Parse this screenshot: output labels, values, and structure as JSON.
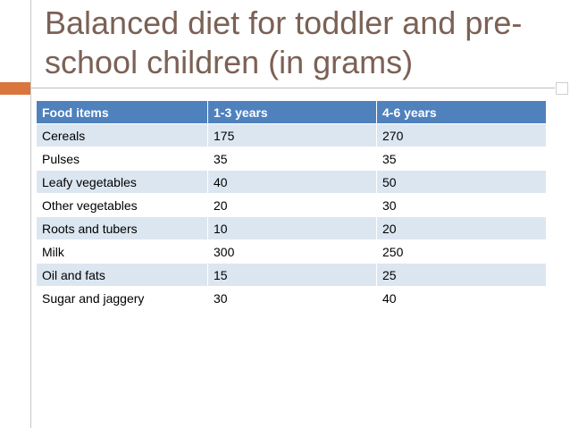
{
  "slide": {
    "title": "Balanced diet for toddler and pre-school children (in grams)"
  },
  "table": {
    "headers": [
      "Food items",
      "1-3 years",
      "4-6 years"
    ],
    "rows": [
      [
        "Cereals",
        "175",
        "270"
      ],
      [
        "Pulses",
        "35",
        "35"
      ],
      [
        "Leafy vegetables",
        "40",
        "50"
      ],
      [
        "Other vegetables",
        "20",
        "30"
      ],
      [
        "Roots and tubers",
        "10",
        "20"
      ],
      [
        "Milk",
        "300",
        "250"
      ],
      [
        "Oil and fats",
        "15",
        "25"
      ],
      [
        "Sugar and jaggery",
        "30",
        "40"
      ]
    ]
  },
  "colors": {
    "title": "#7b6155",
    "accent": "#d9763d",
    "header_bg": "#4f81bd",
    "row_band": "#dce6f1"
  }
}
